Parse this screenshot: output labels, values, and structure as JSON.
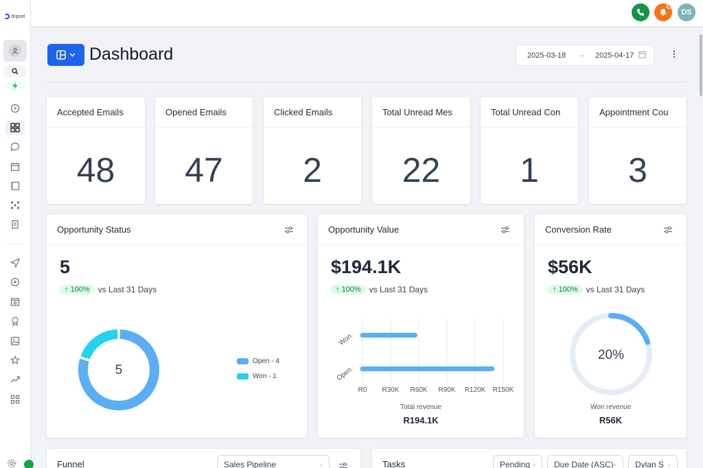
{
  "brand": {
    "name": "dripcel"
  },
  "topbar": {
    "avatar_initials": "DS",
    "colors": {
      "phone": "#17944a",
      "bell": "#f97316",
      "avatar": "#7fb3b9"
    }
  },
  "header": {
    "title": "Dashboard",
    "date_start": "2025-03-18",
    "date_end": "2025-04-17"
  },
  "stats": [
    {
      "title": "Accepted Emails",
      "value": "48"
    },
    {
      "title": "Opened Emails",
      "value": "47"
    },
    {
      "title": "Clicked Emails",
      "value": "2"
    },
    {
      "title": "Total Unread Mes",
      "value": "22"
    },
    {
      "title": "Total Unread Con",
      "value": "1"
    },
    {
      "title": "Appointment Cou",
      "value": "3"
    }
  ],
  "opportunity_status": {
    "title": "Opportunity Status",
    "value": "5",
    "trend": "100%",
    "trend_label": "vs Last 31 Days",
    "center_label": "5",
    "legend": [
      {
        "label": "Open - 4",
        "color": "#5aaef5"
      },
      {
        "label": "Won - 1",
        "color": "#22d3ee"
      }
    ]
  },
  "opportunity_value": {
    "title": "Opportunity Value",
    "value": "$194.1K",
    "trend": "100%",
    "trend_label": "vs Last 31 Days",
    "footer_label": "Total revenue",
    "footer_value": "R194.1K"
  },
  "conversion_rate": {
    "title": "Conversion Rate",
    "value": "$56K",
    "trend": "100%",
    "trend_label": "vs Last 31 Days",
    "center_label": "20%",
    "footer_label": "Won revenue",
    "footer_value": "R56K"
  },
  "funnel": {
    "title": "Funnel",
    "pipeline_select": "Sales Pipeline"
  },
  "tasks": {
    "title": "Tasks",
    "status_select": "Pending",
    "sort_select": "Due Date (ASC)",
    "user_select": "Dylan S"
  },
  "chart_data": [
    {
      "type": "pie",
      "labels": [
        "Open",
        "Won"
      ],
      "values": [
        4,
        1
      ],
      "colors": [
        "#5aaef5",
        "#22d3ee"
      ],
      "center_text": "5",
      "legend": "right"
    },
    {
      "type": "bar",
      "orientation": "horizontal",
      "categories": [
        "Won",
        "Open"
      ],
      "values": [
        56000,
        138100
      ],
      "color": "#5aaef5",
      "xticks": [
        "R0",
        "R30K",
        "R60K",
        "R90K",
        "R120K",
        "R150K"
      ],
      "xlim": [
        0,
        150000
      ],
      "grid": true
    },
    {
      "type": "pie",
      "labels": [
        "Won"
      ],
      "values": [
        20
      ],
      "percent_of": 100,
      "colors": [
        "#5aaef5",
        "#e5ecf6"
      ],
      "center_text": "20%"
    }
  ]
}
